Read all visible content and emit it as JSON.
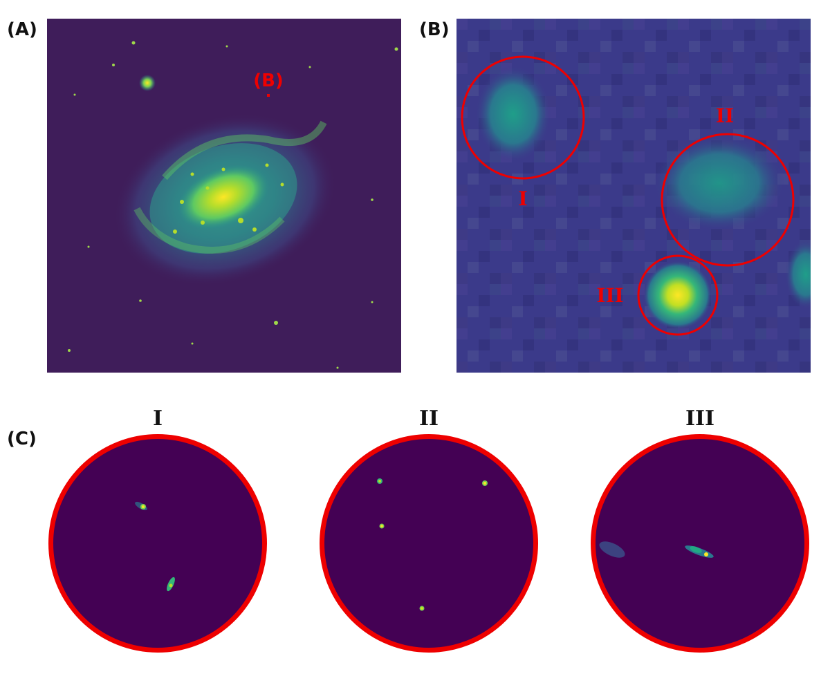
{
  "panels": {
    "a": {
      "label": "(A)",
      "marker": "(B)"
    },
    "b": {
      "label": "(B)",
      "regions": [
        "I",
        "II",
        "III"
      ]
    },
    "c": {
      "label": "(C)",
      "titles": [
        "I",
        "II",
        "III"
      ]
    }
  },
  "colors": {
    "annotation": "#ee0000",
    "colormap": "viridis",
    "background_low": "#440154",
    "high": "#fde725"
  }
}
